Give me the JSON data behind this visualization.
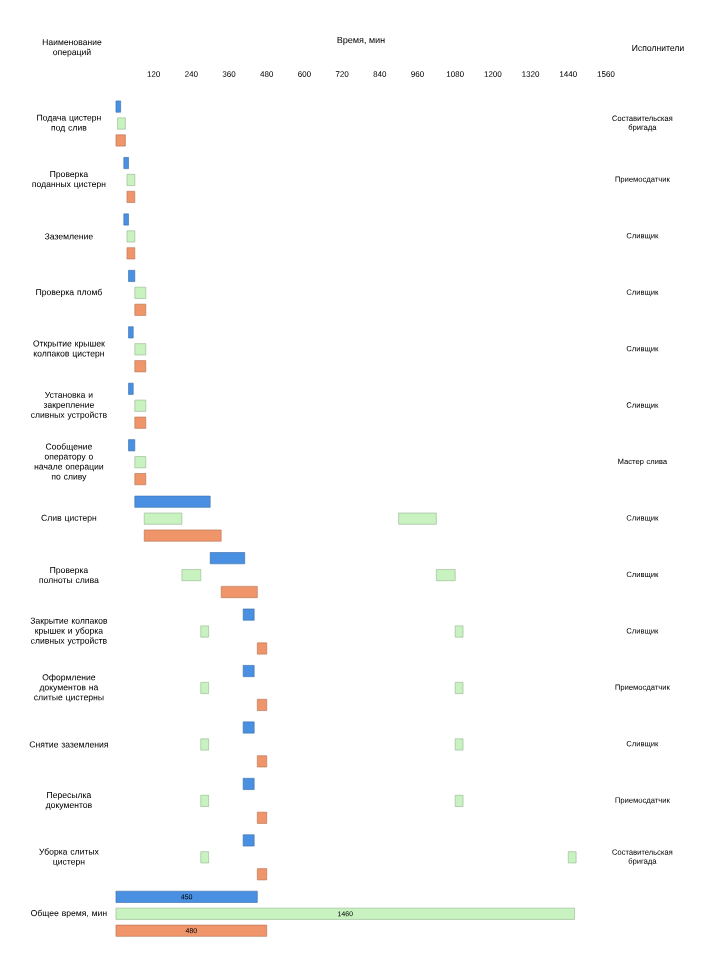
{
  "chart_data": {
    "type": "bar",
    "orientation": "horizontal",
    "title": "Время, мин",
    "ylabel": "Наименование операций",
    "y2label": "Исполнители",
    "categories": [
      "Подача цистерн под слив",
      "Проверка поданных цистерн",
      "Заземление",
      "Проверка пломб",
      "Открытие крышек колпаков цистерн",
      "Установка и закрепление сливных устройств",
      "Сообщение оператору о начале операции по сливу",
      "Слив цистерн",
      "Проверка полноты слива",
      "Закрытие колпаков крышек и уборка сливных устройств",
      "Оформление документов на слитые цистерны",
      "Снятие заземления",
      "Пересылка документов",
      "Уборка слитых цистерн",
      "Общее время, мин"
    ],
    "xlim": [
      0,
      1560
    ],
    "xticks": [
      120,
      240,
      360,
      480,
      600,
      720,
      840,
      960,
      1080,
      1200,
      1320,
      1440,
      1560
    ],
    "tick_labels": "xy",
    "series": [
      {
        "color": "#4a90e2",
        "base": [
          0,
          25,
          25,
          40,
          40,
          40,
          40,
          60,
          300,
          405,
          405,
          405,
          405,
          405,
          0
        ],
        "values": [
          15,
          15,
          15,
          20,
          15,
          15,
          20,
          240,
          110,
          35,
          35,
          35,
          35,
          35,
          450
        ],
        "value_labels": [
          null,
          null,
          null,
          null,
          null,
          null,
          null,
          null,
          null,
          null,
          null,
          null,
          null,
          null,
          "450"
        ]
      },
      {
        "color": "#c8f2c0",
        "base": [
          5,
          35,
          35,
          60,
          60,
          60,
          60,
          90,
          210,
          270,
          270,
          270,
          270,
          270,
          0
        ],
        "values": [
          25,
          25,
          25,
          35,
          35,
          35,
          35,
          120,
          60,
          25,
          25,
          25,
          25,
          25,
          1460
        ],
        "value_labels": [
          null,
          null,
          null,
          null,
          null,
          null,
          null,
          null,
          null,
          null,
          null,
          null,
          null,
          null,
          "1460"
        ]
      },
      {
        "color": "#c8f2c0",
        "base": [
          null,
          null,
          null,
          null,
          null,
          null,
          null,
          900,
          1020,
          1080,
          1080,
          1080,
          1080,
          1440,
          null
        ],
        "values": [
          null,
          null,
          null,
          null,
          null,
          null,
          null,
          120,
          60,
          25,
          25,
          25,
          25,
          25,
          null
        ]
      },
      {
        "color": "#f0956a",
        "base": [
          0,
          35,
          35,
          60,
          60,
          60,
          60,
          90,
          335,
          450,
          450,
          450,
          450,
          450,
          0
        ],
        "values": [
          30,
          25,
          25,
          35,
          35,
          35,
          35,
          245,
          115,
          30,
          30,
          30,
          30,
          30,
          480
        ],
        "value_labels": [
          null,
          null,
          null,
          null,
          null,
          null,
          null,
          null,
          null,
          null,
          null,
          null,
          null,
          null,
          "480"
        ]
      }
    ],
    "annotations": [
      "Составительская бригада",
      "Приемосдатчик",
      "Сливщик",
      "Сливщик",
      "Сливщик",
      "Сливщик",
      "Мастер слива",
      "Сливщик",
      "Сливщик",
      "Сливщик",
      "Приемосдатчик",
      "Сливщик",
      "Приемосдатчик",
      "Составительская бригада"
    ]
  }
}
